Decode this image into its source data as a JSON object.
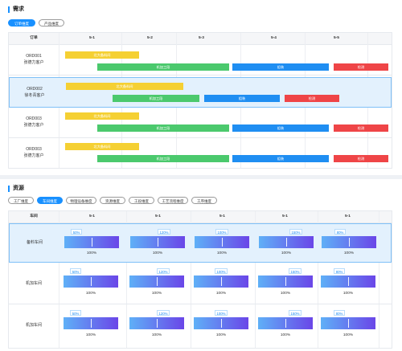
{
  "demand": {
    "title": "需求",
    "tabs": [
      {
        "label": "订单维度",
        "active": true
      },
      {
        "label": "产品维度",
        "active": false
      }
    ],
    "columns": [
      "订单",
      "5-1",
      "5-2",
      "5-3",
      "5-4",
      "5-5"
    ],
    "rows": [
      {
        "order": "ORD001",
        "customer": "张德力客户"
      },
      {
        "order": "ORD002",
        "customer": "徐冬青客户"
      },
      {
        "order": "ORD003",
        "customer": "张德力客户"
      },
      {
        "order": "ORD003",
        "customer": "张德力客户"
      }
    ],
    "bars": {
      "material": "北大备料间",
      "machining": "机加工段",
      "assembly": "组装",
      "test": "检测"
    }
  },
  "resource": {
    "title": "资源",
    "tabs": [
      {
        "label": "工厂维度",
        "active": false
      },
      {
        "label": "车间维度",
        "active": true
      },
      {
        "label": "物理设备维度",
        "active": false
      },
      {
        "label": "资源维度",
        "active": false
      },
      {
        "label": "工段维度",
        "active": false
      },
      {
        "label": "工艺流程维度",
        "active": false
      },
      {
        "label": "工序维度",
        "active": false
      }
    ],
    "columns": [
      "车间",
      "5-1",
      "5-1",
      "5-1",
      "5-1",
      "5-1"
    ],
    "rows": [
      {
        "name": "备料车间",
        "tags": [
          "50%",
          "120%",
          "100%",
          "150%",
          "80%"
        ],
        "totals": [
          "100%",
          "100%",
          "100%",
          "100%",
          "100%"
        ]
      },
      {
        "name": "机加车间",
        "tags": [
          "50%",
          "120%",
          "100%",
          "150%",
          "80%"
        ],
        "totals": [
          "100%",
          "100%",
          "100%",
          "100%",
          "100%"
        ]
      },
      {
        "name": "机加车间",
        "tags": [
          "50%",
          "120%",
          "100%",
          "150%",
          "80%"
        ],
        "totals": [
          "100%",
          "100%",
          "100%",
          "100%",
          "100%"
        ]
      }
    ]
  },
  "colors": {
    "accent": "#1890ff",
    "material": "#f5d033",
    "machining": "#4bc96d",
    "assembly": "#1f8ef2",
    "test": "#ef4547"
  }
}
